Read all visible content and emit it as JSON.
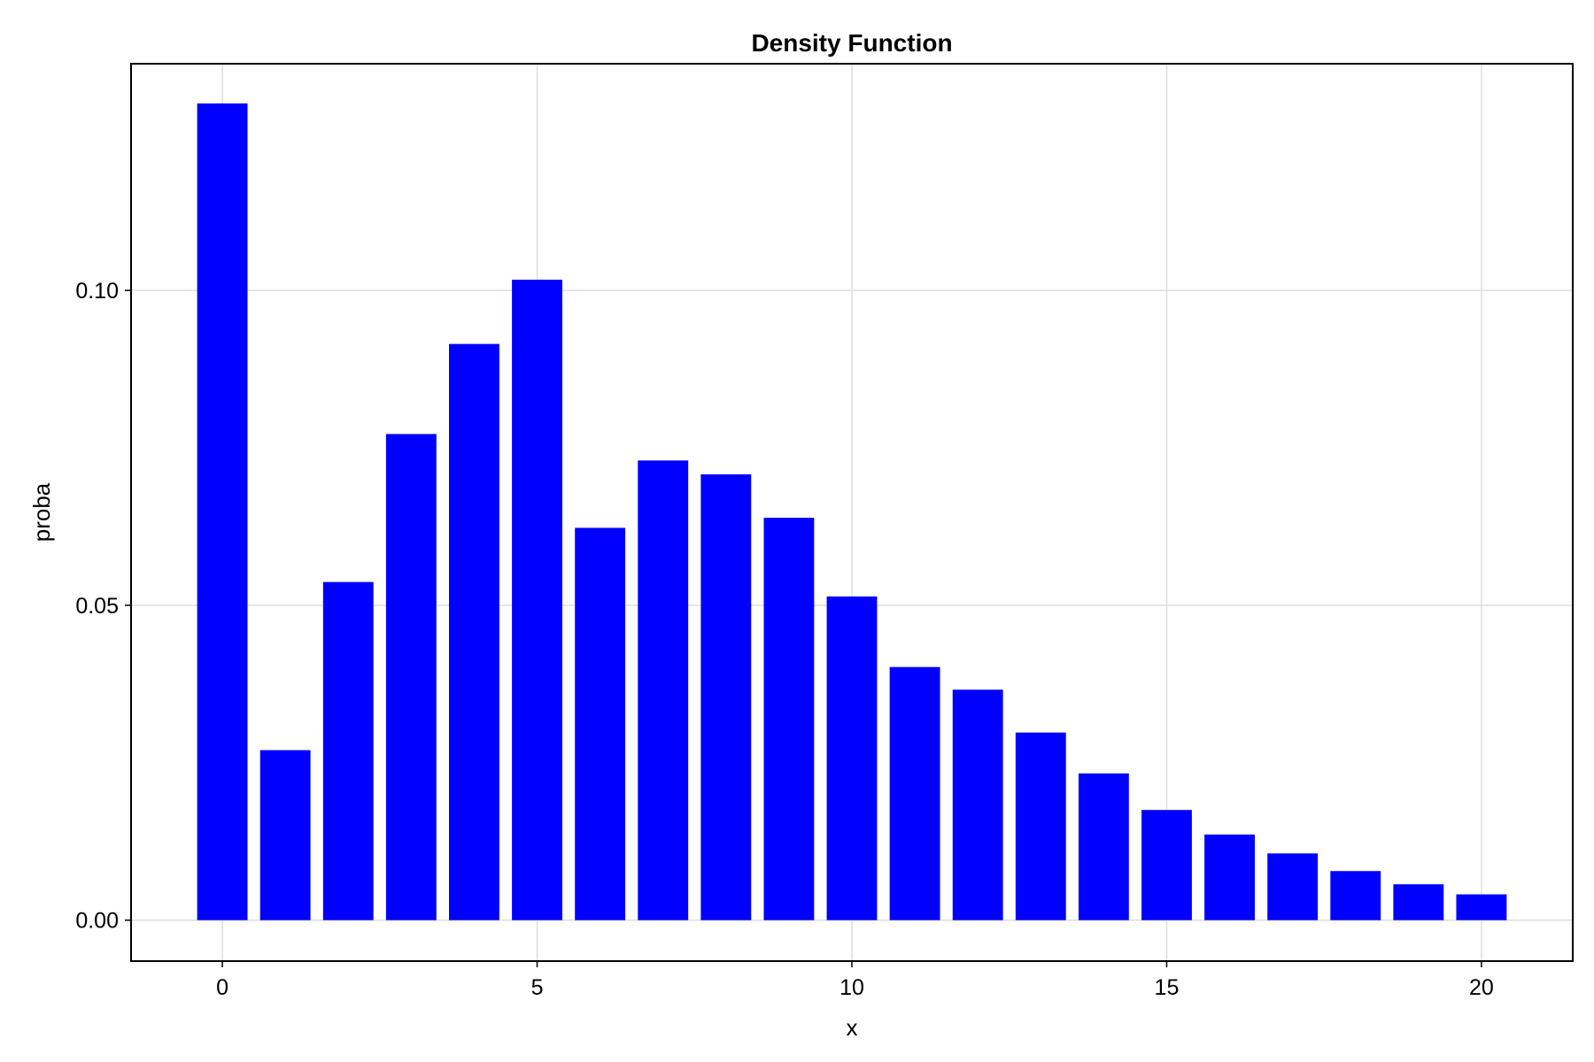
{
  "chart_data": {
    "type": "bar",
    "title": "Density Function",
    "xlabel": "x",
    "ylabel": "proba",
    "x": [
      0,
      1,
      2,
      3,
      4,
      5,
      6,
      7,
      8,
      9,
      10,
      11,
      12,
      13,
      14,
      15,
      16,
      17,
      18,
      19,
      20
    ],
    "values": [
      0.1297,
      0.027,
      0.0537,
      0.0772,
      0.0915,
      0.1017,
      0.0623,
      0.073,
      0.0708,
      0.0639,
      0.0514,
      0.0402,
      0.0366,
      0.0298,
      0.0233,
      0.0175,
      0.0136,
      0.0106,
      0.0078,
      0.0057,
      0.0041
    ],
    "xlim": [
      -1.45,
      21.45
    ],
    "ylim": [
      -0.0065,
      0.136
    ],
    "xticks": [
      0,
      5,
      10,
      15,
      20
    ],
    "xtick_labels": [
      "0",
      "5",
      "10",
      "15",
      "20"
    ],
    "yticks": [
      0.0,
      0.05,
      0.1
    ],
    "ytick_labels": [
      "0.00",
      "0.05",
      "0.10"
    ],
    "bar_color": "#0000ff",
    "grid": true,
    "legend": "none"
  }
}
